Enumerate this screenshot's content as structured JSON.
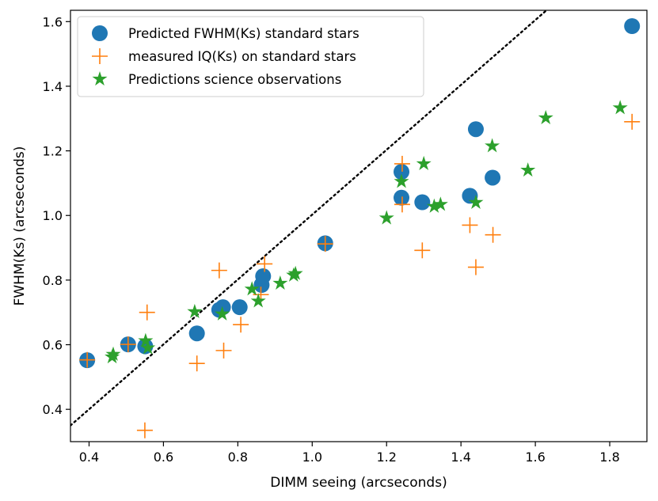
{
  "chart_data": {
    "type": "scatter",
    "title": "",
    "xlabel": "DIMM seeing (arcseconds)",
    "ylabel": "FWHM(Ks) (arcseconds)",
    "xlim": [
      0.35,
      1.9
    ],
    "ylim": [
      0.3,
      1.635
    ],
    "xticks": [
      0.4,
      0.6,
      0.8,
      1.0,
      1.2,
      1.4,
      1.6,
      1.8
    ],
    "xtick_labels": [
      "0.4",
      "0.6",
      "0.8",
      "1.0",
      "1.2",
      "1.4",
      "1.6",
      "1.8"
    ],
    "yticks": [
      0.4,
      0.6,
      0.8,
      1.0,
      1.2,
      1.4,
      1.6
    ],
    "ytick_labels": [
      "0.4",
      "0.6",
      "0.8",
      "1.0",
      "1.2",
      "1.4",
      "1.6"
    ],
    "legend_position": "top-left",
    "reference_line": {
      "label": "",
      "style": "dotted",
      "color": "#000000",
      "points": [
        [
          0.35,
          0.35
        ],
        [
          1.63,
          1.635
        ]
      ]
    },
    "series": [
      {
        "name": "Predicted FWHM(Ks) standard stars",
        "marker": "circle",
        "color": "#1f77b4",
        "points": [
          [
            0.395,
            0.552
          ],
          [
            0.505,
            0.601
          ],
          [
            0.551,
            0.595
          ],
          [
            0.69,
            0.635
          ],
          [
            0.75,
            0.708
          ],
          [
            0.76,
            0.716
          ],
          [
            0.805,
            0.716
          ],
          [
            0.864,
            0.785
          ],
          [
            0.868,
            0.812
          ],
          [
            1.035,
            0.914
          ],
          [
            1.24,
            1.135
          ],
          [
            1.24,
            1.055
          ],
          [
            1.296,
            1.041
          ],
          [
            1.424,
            1.061
          ],
          [
            1.44,
            1.267
          ],
          [
            1.485,
            1.117
          ],
          [
            1.86,
            1.586
          ]
        ]
      },
      {
        "name": "measured IQ(Ks) on standard stars",
        "marker": "plus",
        "color": "#ff7f0e",
        "points": [
          [
            0.395,
            0.553
          ],
          [
            0.505,
            0.601
          ],
          [
            0.55,
            0.335
          ],
          [
            0.556,
            0.7
          ],
          [
            0.69,
            0.542
          ],
          [
            0.75,
            0.83
          ],
          [
            0.762,
            0.582
          ],
          [
            0.808,
            0.662
          ],
          [
            0.862,
            0.755
          ],
          [
            0.872,
            0.85
          ],
          [
            1.035,
            0.912
          ],
          [
            1.242,
            1.16
          ],
          [
            1.242,
            1.034
          ],
          [
            1.296,
            0.892
          ],
          [
            1.424,
            0.97
          ],
          [
            1.44,
            0.84
          ],
          [
            1.486,
            0.94
          ],
          [
            1.86,
            1.29
          ]
        ]
      },
      {
        "name": "Predictions science observations",
        "marker": "star",
        "color": "#2ca02c",
        "points": [
          [
            0.462,
            0.562
          ],
          [
            0.465,
            0.57
          ],
          [
            0.552,
            0.612
          ],
          [
            0.558,
            0.59
          ],
          [
            0.684,
            0.702
          ],
          [
            0.758,
            0.695
          ],
          [
            0.838,
            0.772
          ],
          [
            0.855,
            0.735
          ],
          [
            0.914,
            0.79
          ],
          [
            0.95,
            0.815
          ],
          [
            0.955,
            0.82
          ],
          [
            1.2,
            0.992
          ],
          [
            1.24,
            1.105
          ],
          [
            1.3,
            1.16
          ],
          [
            1.328,
            1.028
          ],
          [
            1.345,
            1.034
          ],
          [
            1.44,
            1.04
          ],
          [
            1.484,
            1.215
          ],
          [
            1.58,
            1.14
          ],
          [
            1.628,
            1.302
          ],
          [
            1.828,
            1.333
          ]
        ]
      }
    ]
  }
}
